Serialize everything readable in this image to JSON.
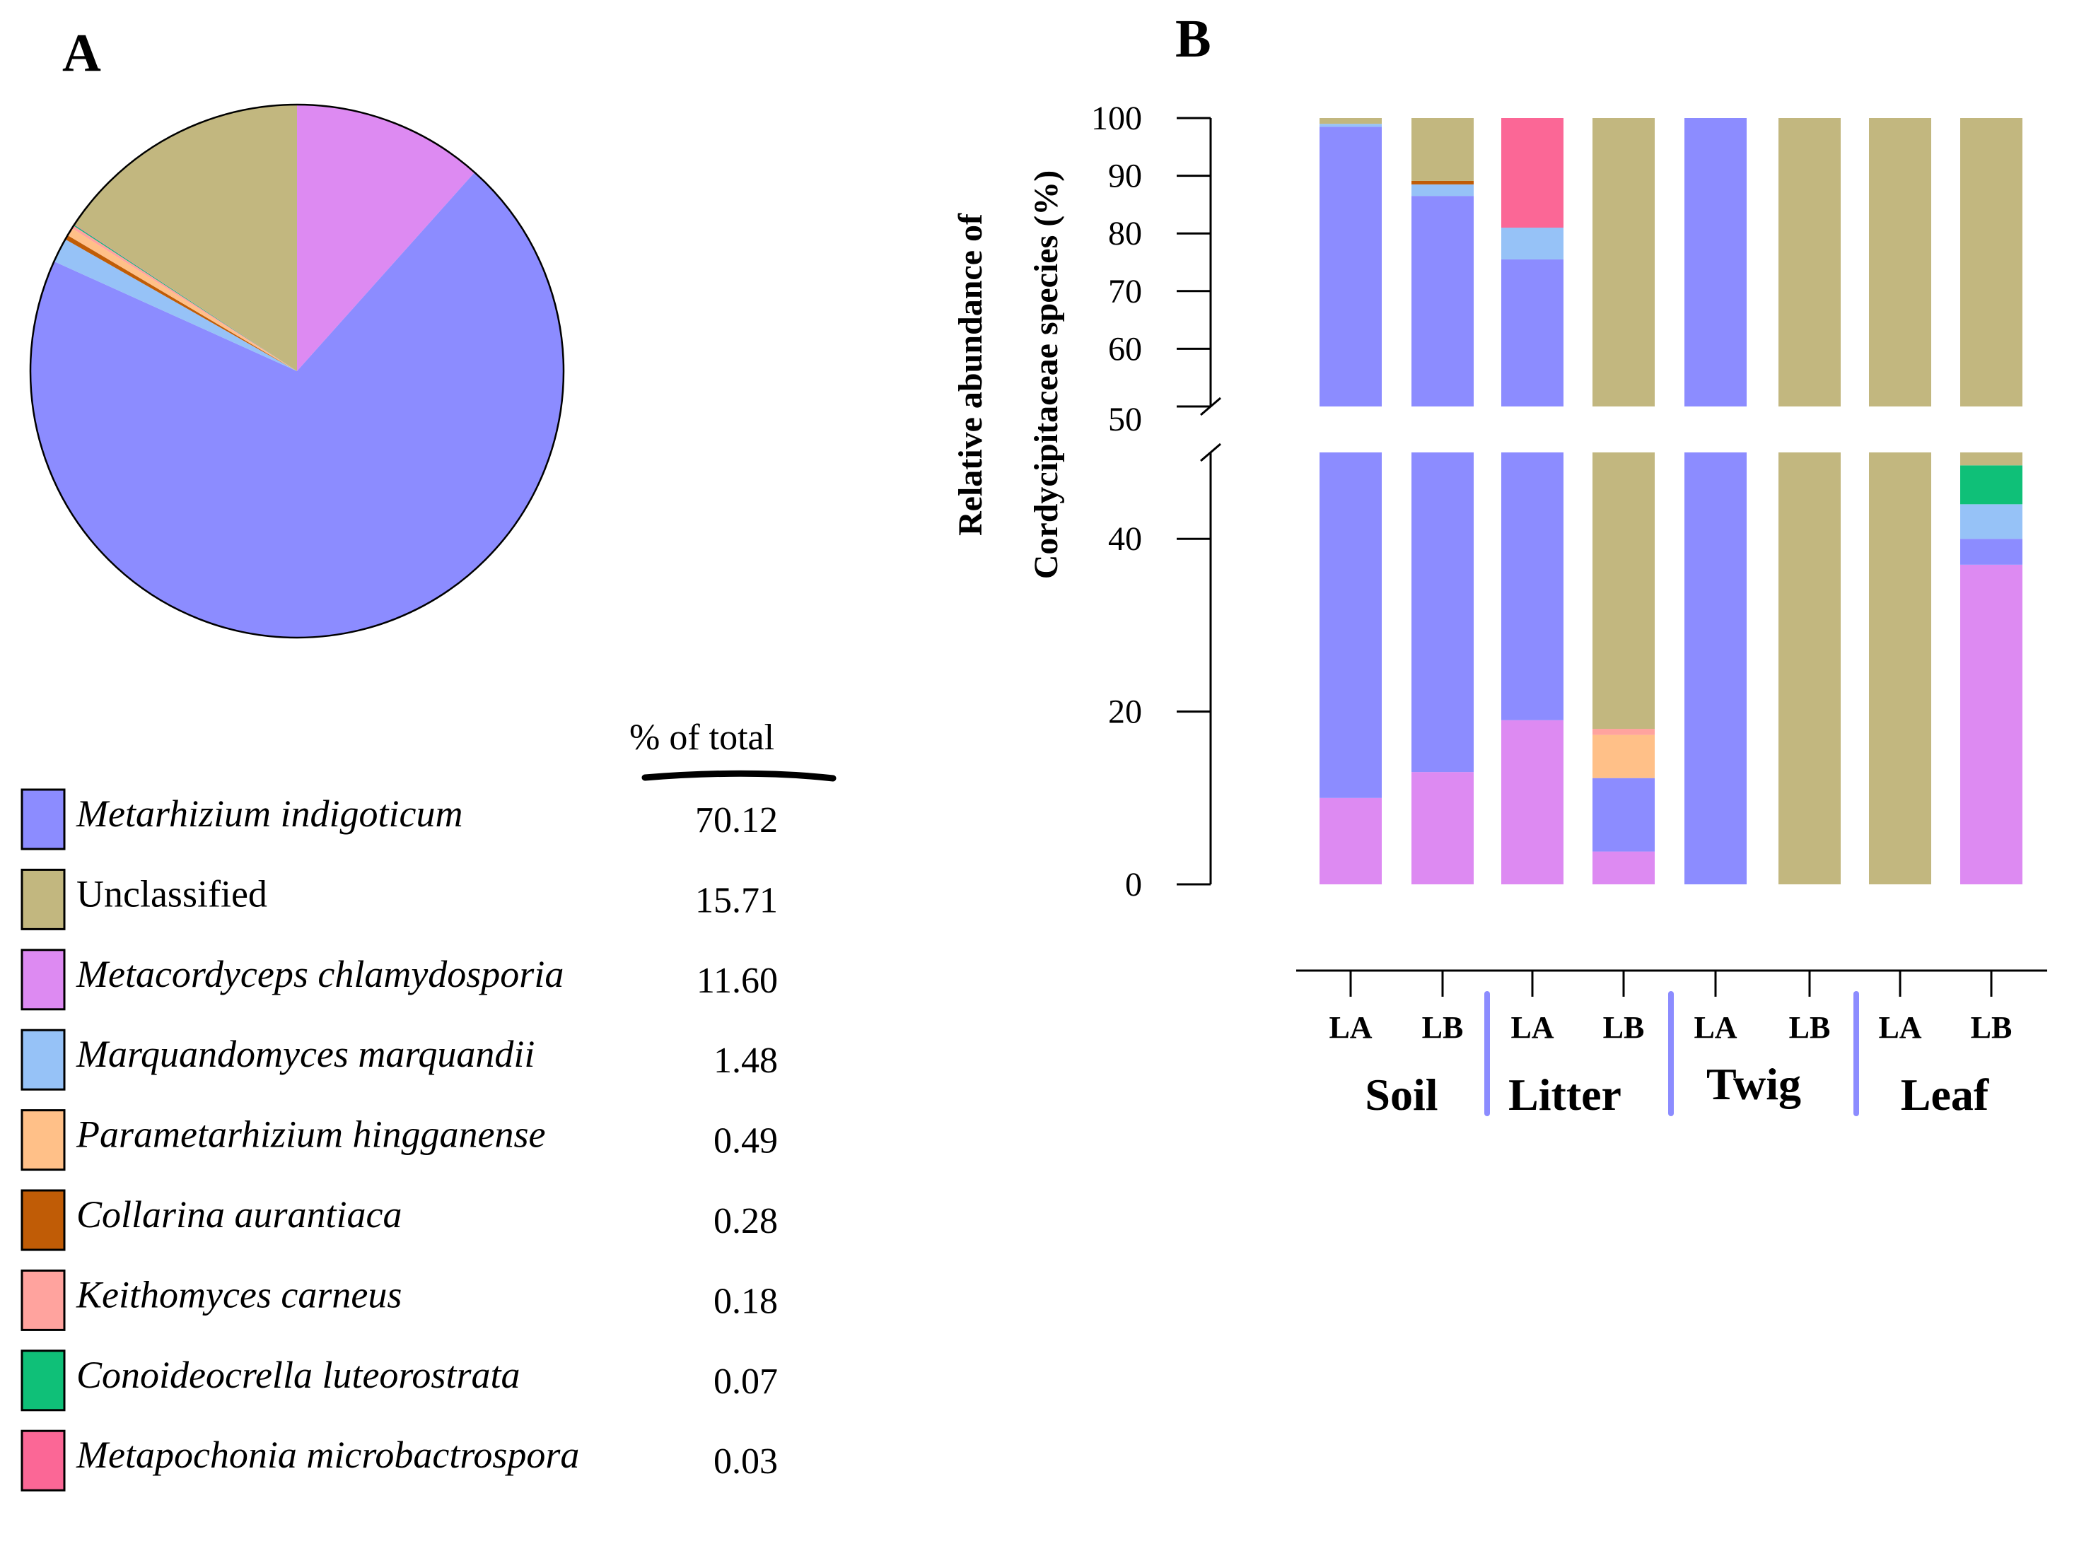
{
  "panel_a_label": "A",
  "panel_b_label": "B",
  "legend_header": "% of  total",
  "colors": {
    "Metarhizium indigoticum": "#8C8CFF",
    "Unclassified": "#C2B77F",
    "Metacordyceps chlamydosporia": "#DD8AF2",
    "Marquandomyces marquandii": "#96C2F7",
    "Parametarhizium hingganense": "#FFC088",
    "Collarina aurantiaca": "#C05C06",
    "Keithomyces carneus": "#FFA39E",
    "Conoideocrella luteorostrata": "#0FC078",
    "Metapochonia microbactrospora": "#FB6796"
  },
  "legend": [
    {
      "name": "Metarhizium indigoticum",
      "value": "70.12",
      "italic": true
    },
    {
      "name": "Unclassified",
      "value": "15.71",
      "italic": false
    },
    {
      "name": "Metacordyceps chlamydosporia",
      "value": "11.60",
      "italic": true
    },
    {
      "name": "Marquandomyces marquandii",
      "value": "1.48",
      "italic": true
    },
    {
      "name": "Parametarhizium hingganense",
      "value": "0.49",
      "italic": true
    },
    {
      "name": "Collarina aurantiaca",
      "value": "0.28",
      "italic": true
    },
    {
      "name": "Keithomyces carneus",
      "value": "0.18",
      "italic": true
    },
    {
      "name": "Conoideocrella luteorostrata",
      "value": "0.07",
      "italic": true
    },
    {
      "name": "Metapochonia microbactrospora",
      "value": "0.03",
      "italic": true
    }
  ],
  "chart_data": [
    {
      "type": "pie",
      "title": "",
      "slices": [
        {
          "label": "Metacordyceps chlamydosporia",
          "value": 11.6
        },
        {
          "label": "Metarhizium indigoticum",
          "value": 70.12
        },
        {
          "label": "Marquandomyces marquandii",
          "value": 1.48
        },
        {
          "label": "Collarina aurantiaca",
          "value": 0.28
        },
        {
          "label": "Parametarhizium hingganense",
          "value": 0.49
        },
        {
          "label": "Keithomyces carneus",
          "value": 0.18
        },
        {
          "label": "Conoideocrella luteorostrata",
          "value": 0.07
        },
        {
          "label": "Metapochonia microbactrospora",
          "value": 0.03
        },
        {
          "label": "Unclassified",
          "value": 15.71
        }
      ]
    },
    {
      "type": "bar",
      "stacked": true,
      "ylabel_line1": "Relative abundance of",
      "ylabel_line2": "Cordycipitaceae species (%)",
      "ylim_lower": [
        0,
        50
      ],
      "ylim_upper": [
        50,
        100
      ],
      "yticks_lower": [
        "0",
        "20",
        "40"
      ],
      "yticks_upper": [
        "50",
        "60",
        "70",
        "80",
        "90",
        "100"
      ],
      "categories": [
        "LA",
        "LB",
        "LA",
        "LB",
        "LA",
        "LB",
        "LA",
        "LB"
      ],
      "groups": [
        "Soil",
        "Litter",
        "Twig",
        "Leaf"
      ],
      "bars": [
        [
          {
            "species": "Metacordyceps chlamydosporia",
            "value": 10.0
          },
          {
            "species": "Metarhizium indigoticum",
            "value": 88.5
          },
          {
            "species": "Marquandomyces marquandii",
            "value": 0.5
          },
          {
            "species": "Unclassified",
            "value": 1.0
          }
        ],
        [
          {
            "species": "Metacordyceps chlamydosporia",
            "value": 13.0
          },
          {
            "species": "Metarhizium indigoticum",
            "value": 73.5
          },
          {
            "species": "Marquandomyces marquandii",
            "value": 2.0
          },
          {
            "species": "Collarina aurantiaca",
            "value": 0.6
          },
          {
            "species": "Unclassified",
            "value": 10.9
          }
        ],
        [
          {
            "species": "Metacordyceps chlamydosporia",
            "value": 19.0
          },
          {
            "species": "Metarhizium indigoticum",
            "value": 56.5
          },
          {
            "species": "Marquandomyces marquandii",
            "value": 5.5
          },
          {
            "species": "Metapochonia microbactrospora",
            "value": 19.0
          }
        ],
        [
          {
            "species": "Metacordyceps chlamydosporia",
            "value": 3.8
          },
          {
            "species": "Metarhizium indigoticum",
            "value": 8.5
          },
          {
            "species": "Parametarhizium hingganense",
            "value": 5.0
          },
          {
            "species": "Keithomyces carneus",
            "value": 0.7
          },
          {
            "species": "Unclassified",
            "value": 82.0
          }
        ],
        [
          {
            "species": "Metarhizium indigoticum",
            "value": 100.0
          }
        ],
        [
          {
            "species": "Unclassified",
            "value": 100.0
          }
        ],
        [
          {
            "species": "Unclassified",
            "value": 100.0
          }
        ],
        [
          {
            "species": "Metacordyceps chlamydosporia",
            "value": 37.0
          },
          {
            "species": "Metarhizium indigoticum",
            "value": 3.0
          },
          {
            "species": "Marquandomyces marquandii",
            "value": 4.0
          },
          {
            "species": "Conoideocrella luteorostrata",
            "value": 4.5
          },
          {
            "species": "Unclassified",
            "value": 51.5
          }
        ]
      ]
    }
  ]
}
